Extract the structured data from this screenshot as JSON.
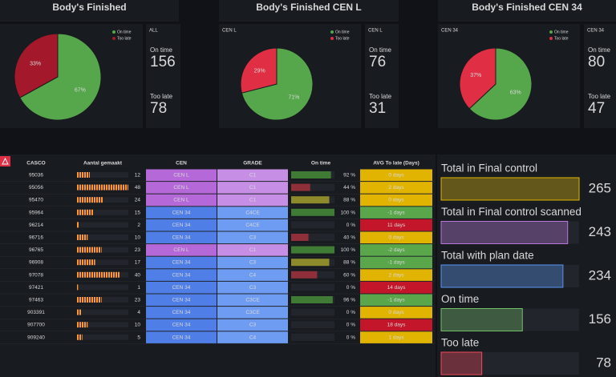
{
  "pie_panels": [
    {
      "title": "Body's Finished",
      "stat_label": "ALL",
      "slices": [
        {
          "name": "On time",
          "color": "#56a64b",
          "value": 67,
          "value_label": "67%"
        },
        {
          "name": "Too late",
          "color": "#a3192b",
          "value": 33,
          "value_label": "33%"
        }
      ],
      "stats": [
        {
          "name": "On time",
          "value": 156,
          "color": "#73bf69"
        },
        {
          "name": "Too late",
          "value": 78,
          "color": "#f2495c"
        }
      ]
    },
    {
      "title": "Body's Finished CEN L",
      "pie_label": "CEN L",
      "stat_label": "CEN L",
      "slices": [
        {
          "name": "On time",
          "color": "#56a64b",
          "value": 71,
          "value_label": "71%"
        },
        {
          "name": "Too late",
          "color": "#e02f44",
          "value": 29,
          "value_label": "29%"
        }
      ],
      "stats": [
        {
          "name": "On time",
          "value": 76,
          "color": "#73bf69"
        },
        {
          "name": "Too late",
          "value": 31,
          "color": "#f2495c"
        }
      ]
    },
    {
      "title": "Body's Finished CEN 34",
      "pie_label": "CEN 34",
      "stat_label": "CEN 34",
      "slices": [
        {
          "name": "On time",
          "color": "#56a64b",
          "value": 63,
          "value_label": "63%"
        },
        {
          "name": "Too late",
          "color": "#e02f44",
          "value": 37,
          "value_label": "37%"
        }
      ],
      "stats": [
        {
          "name": "On time",
          "value": 80,
          "color": "#73bf69"
        },
        {
          "name": "Too late",
          "value": 47,
          "color": "#f2495c"
        }
      ]
    }
  ],
  "table": {
    "columns": [
      "CASCO",
      "Aantal gemaakt",
      "CEN",
      "GRADE",
      "On time",
      "AVG To late (Days)"
    ],
    "rows": [
      [
        "95036",
        12,
        "CEN L",
        "C1",
        {
          "value": 92,
          "label": "92 %"
        },
        {
          "value": 0,
          "label": "0 days"
        }
      ],
      [
        "95056",
        48,
        "CEN L",
        "C1",
        {
          "value": 44,
          "label": "44 %"
        },
        {
          "value": 2,
          "label": "2 days"
        }
      ],
      [
        "95470",
        24,
        "CEN L",
        "C1",
        {
          "value": 88,
          "label": "88 %"
        },
        {
          "value": 0,
          "label": "0 days"
        }
      ],
      [
        "95964",
        15,
        "CEN 34",
        "C4CE",
        {
          "value": 100,
          "label": "100 %"
        },
        {
          "value": -1,
          "label": "-1 days"
        }
      ],
      [
        "96214",
        2,
        "CEN 34",
        "C4CE",
        {
          "value": 0,
          "label": "0 %"
        },
        {
          "value": 11,
          "label": "11 days"
        }
      ],
      [
        "96716",
        10,
        "CEN 34",
        "C3",
        {
          "value": 40,
          "label": "40 %"
        },
        {
          "value": 0,
          "label": "0 days"
        }
      ],
      [
        "96765",
        23,
        "CEN L",
        "C1",
        {
          "value": 100,
          "label": "100 %"
        },
        {
          "value": -2,
          "label": "-2 days"
        }
      ],
      [
        "96908",
        17,
        "CEN 34",
        "C3",
        {
          "value": 88,
          "label": "88 %"
        },
        {
          "value": -1,
          "label": "-1 days"
        }
      ],
      [
        "97078",
        40,
        "CEN 34",
        "C4",
        {
          "value": 60,
          "label": "60 %"
        },
        {
          "value": 2,
          "label": "2 days"
        }
      ],
      [
        "97421",
        1,
        "CEN 34",
        "C3",
        {
          "value": 0,
          "label": "0 %"
        },
        {
          "value": 14,
          "label": "14 days"
        }
      ],
      [
        "97463",
        23,
        "CEN 34",
        "C3CE",
        {
          "value": 96,
          "label": "96 %"
        },
        {
          "value": -1,
          "label": "-1 days"
        }
      ],
      [
        "903391",
        4,
        "CEN 34",
        "C3CE",
        {
          "value": 0,
          "label": "0 %"
        },
        {
          "value": 0,
          "label": "0 days"
        }
      ],
      [
        "907700",
        10,
        "CEN 34",
        "C3",
        {
          "value": 0,
          "label": "0 %"
        },
        {
          "value": 18,
          "label": "18 days"
        }
      ],
      [
        "909240",
        5,
        "CEN 34",
        "C4",
        {
          "value": 0,
          "label": "0 %"
        },
        {
          "value": 1,
          "label": "1 days"
        }
      ]
    ]
  },
  "bar_gauge": [
    {
      "name": "Total in Final control",
      "value": 265,
      "color": "#e0b400"
    },
    {
      "name": "Total in Final control scanned",
      "value": 243,
      "color": "#b877d9"
    },
    {
      "name": "Total with plan date",
      "value": 234,
      "color": "#5794f2"
    },
    {
      "name": "On time",
      "value": 156,
      "color": "#73bf69"
    },
    {
      "name": "Too late",
      "value": 78,
      "color": "#f2495c"
    }
  ]
}
